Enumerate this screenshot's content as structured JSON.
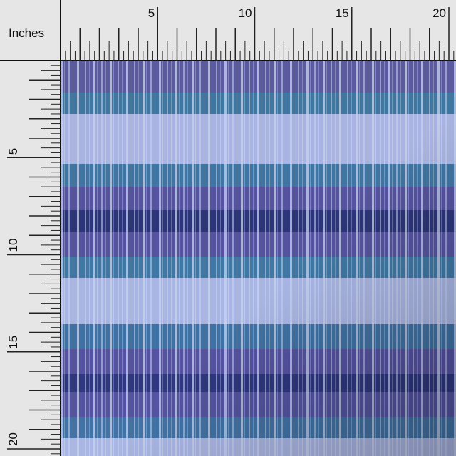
{
  "unit_label": "Inches",
  "top_ruler": {
    "labels": [
      5,
      10,
      15,
      20
    ]
  },
  "left_ruler": {
    "labels": [
      5,
      10,
      15,
      20
    ]
  }
}
